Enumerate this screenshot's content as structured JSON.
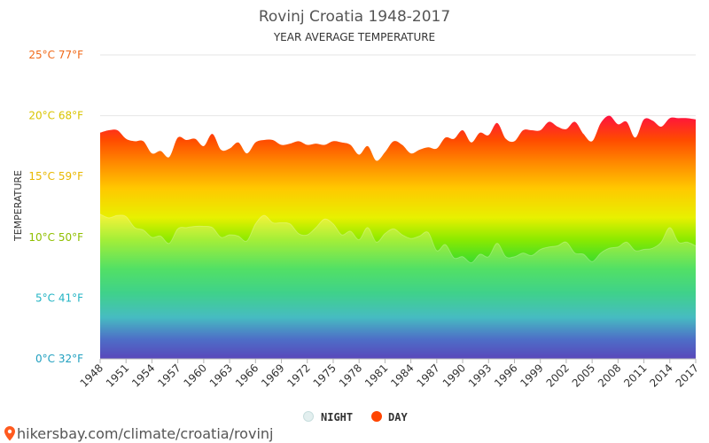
{
  "chart_data": {
    "type": "area",
    "title": "Rovinj Croatia 1948-2017",
    "subtitle": "YEAR AVERAGE TEMPERATURE",
    "ylabel": "TEMPERATURE",
    "ylim": [
      0,
      25
    ],
    "xlim": [
      1948,
      2017
    ],
    "grid": true,
    "legend_position": "bottom-center",
    "y_ticks": [
      {
        "value": 0,
        "label": "0°C 32°F",
        "color": "#1f9fbf"
      },
      {
        "value": 5,
        "label": "5°C 41°F",
        "color": "#22b4c4"
      },
      {
        "value": 10,
        "label": "10°C 50°F",
        "color": "#8fbf00"
      },
      {
        "value": 15,
        "label": "15°C 59°F",
        "color": "#e8b800"
      },
      {
        "value": 20,
        "label": "20°C 68°F",
        "color": "#d9c400"
      },
      {
        "value": 25,
        "label": "25°C 77°F",
        "color": "#f06a1a"
      }
    ],
    "x_ticks": [
      "1948",
      "1951",
      "1954",
      "1957",
      "1960",
      "1963",
      "1966",
      "1969",
      "1972",
      "1975",
      "1978",
      "1981",
      "1984",
      "1987",
      "1990",
      "1993",
      "1996",
      "1999",
      "2002",
      "2005",
      "2008",
      "2011",
      "2014",
      "2017"
    ],
    "series": [
      {
        "name": "DAY",
        "color": "#ff4500",
        "x": [
          1948,
          1949,
          1950,
          1951,
          1952,
          1953,
          1954,
          1955,
          1956,
          1957,
          1958,
          1959,
          1960,
          1961,
          1962,
          1963,
          1964,
          1965,
          1966,
          1967,
          1968,
          1969,
          1970,
          1971,
          1972,
          1973,
          1974,
          1975,
          1976,
          1977,
          1978,
          1979,
          1980,
          1981,
          1982,
          1983,
          1984,
          1985,
          1986,
          1987,
          1988,
          1989,
          1990,
          1991,
          1992,
          1993,
          1994,
          1995,
          1996,
          1997,
          1998,
          1999,
          2000,
          2001,
          2002,
          2003,
          2004,
          2005,
          2006,
          2007,
          2008,
          2009,
          2010,
          2011,
          2012,
          2013,
          2014,
          2015,
          2016,
          2017
        ],
        "values": [
          18.6,
          18.8,
          18.8,
          18.1,
          17.9,
          17.9,
          16.9,
          17.1,
          16.6,
          18.2,
          18.0,
          18.1,
          17.5,
          18.5,
          17.2,
          17.3,
          17.8,
          16.9,
          17.8,
          18.0,
          18.0,
          17.6,
          17.7,
          17.9,
          17.6,
          17.7,
          17.6,
          17.9,
          17.8,
          17.6,
          16.8,
          17.5,
          16.3,
          17.0,
          17.9,
          17.6,
          16.9,
          17.2,
          17.4,
          17.3,
          18.2,
          18.1,
          18.8,
          17.8,
          18.6,
          18.4,
          19.4,
          18.1,
          17.9,
          18.8,
          18.8,
          18.8,
          19.5,
          19.1,
          18.9,
          19.5,
          18.5,
          17.9,
          19.4,
          20.0,
          19.3,
          19.5,
          18.2,
          19.7,
          19.6,
          19.1,
          19.8,
          19.8,
          19.8,
          19.7
        ]
      },
      {
        "name": "NIGHT",
        "color": "#ddeeee",
        "x": [
          1948,
          1949,
          1950,
          1951,
          1952,
          1953,
          1954,
          1955,
          1956,
          1957,
          1958,
          1959,
          1960,
          1961,
          1962,
          1963,
          1964,
          1965,
          1966,
          1967,
          1968,
          1969,
          1970,
          1971,
          1972,
          1973,
          1974,
          1975,
          1976,
          1977,
          1978,
          1979,
          1980,
          1981,
          1982,
          1983,
          1984,
          1985,
          1986,
          1987,
          1988,
          1989,
          1990,
          1991,
          1992,
          1993,
          1994,
          1995,
          1996,
          1997,
          1998,
          1999,
          2000,
          2001,
          2002,
          2003,
          2004,
          2005,
          2006,
          2007,
          2008,
          2009,
          2010,
          2011,
          2012,
          2013,
          2014,
          2015,
          2016,
          2017
        ],
        "values": [
          11.9,
          11.6,
          11.8,
          11.7,
          10.8,
          10.6,
          10.0,
          10.1,
          9.5,
          10.7,
          10.8,
          10.9,
          10.9,
          10.8,
          10.0,
          10.2,
          10.1,
          9.7,
          11.1,
          11.8,
          11.2,
          11.2,
          11.1,
          10.3,
          10.2,
          10.8,
          11.5,
          11.1,
          10.2,
          10.5,
          9.8,
          10.8,
          9.6,
          10.3,
          10.7,
          10.2,
          9.9,
          10.1,
          10.4,
          8.9,
          9.4,
          8.3,
          8.4,
          7.9,
          8.6,
          8.4,
          9.5,
          8.4,
          8.4,
          8.7,
          8.5,
          9.0,
          9.2,
          9.3,
          9.6,
          8.7,
          8.6,
          8.0,
          8.7,
          9.1,
          9.2,
          9.6,
          8.9,
          9.0,
          9.1,
          9.6,
          10.8,
          9.6,
          9.6,
          9.3
        ]
      }
    ]
  },
  "legend": {
    "night_label": "NIGHT",
    "day_label": "DAY"
  },
  "footer": {
    "source_text": "hikersbay.com/climate/croatia/rovinj"
  }
}
